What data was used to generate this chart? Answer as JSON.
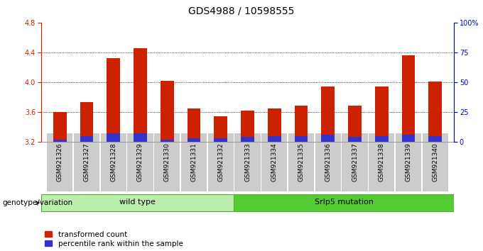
{
  "title": "GDS4988 / 10598555",
  "samples": [
    "GSM921326",
    "GSM921327",
    "GSM921328",
    "GSM921329",
    "GSM921330",
    "GSM921331",
    "GSM921332",
    "GSM921333",
    "GSM921334",
    "GSM921335",
    "GSM921336",
    "GSM921337",
    "GSM921338",
    "GSM921339",
    "GSM921340"
  ],
  "transformed_count": [
    3.6,
    3.73,
    4.32,
    4.46,
    4.02,
    3.65,
    3.54,
    3.62,
    3.65,
    3.69,
    3.94,
    3.69,
    3.94,
    4.36,
    4.01
  ],
  "percentile_rank": [
    2.0,
    5.0,
    7.0,
    7.0,
    2.0,
    3.0,
    3.0,
    4.0,
    5.0,
    5.0,
    6.0,
    4.0,
    5.0,
    6.0,
    5.0
  ],
  "baseline": 3.2,
  "ylim_left": [
    3.2,
    4.8
  ],
  "ylim_right": [
    0,
    100
  ],
  "yticks_left": [
    3.2,
    3.6,
    4.0,
    4.4,
    4.8
  ],
  "yticks_right": [
    0,
    25,
    50,
    75,
    100
  ],
  "ytick_labels_right": [
    "0",
    "25",
    "50",
    "75",
    "100%"
  ],
  "grid_lines": [
    3.6,
    4.0,
    4.4
  ],
  "wild_type_label": "wild type",
  "mutation_label": "Srlp5 mutation",
  "genotype_label": "genotype/variation",
  "legend_items": [
    "transformed count",
    "percentile rank within the sample"
  ],
  "legend_colors": [
    "#cc2200",
    "#3333cc"
  ],
  "bar_color_red": "#cc2200",
  "bar_color_blue": "#3333cc",
  "green_light": "#bbeeaa",
  "green_dark": "#55cc33",
  "title_fontsize": 10,
  "tick_fontsize": 7,
  "axis_color_left": "#cc2200",
  "axis_color_right": "#0000cc"
}
